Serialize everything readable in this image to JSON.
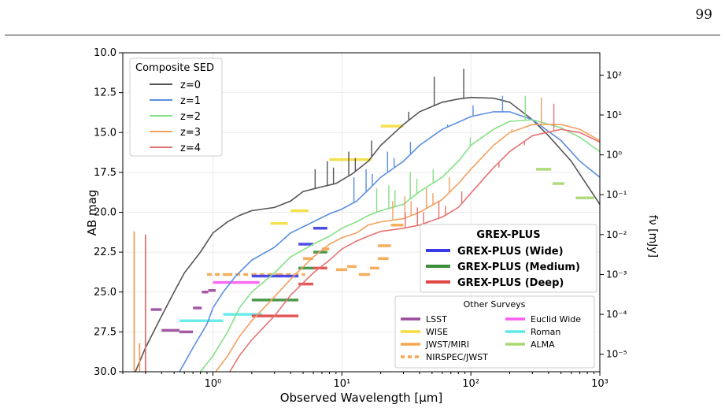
{
  "page": {
    "number": "99"
  },
  "chart_data": {
    "type": "line",
    "xlabel": "Observed Wavelength [μm]",
    "ylabel": "AB mag",
    "y2label": "fν [mJy]",
    "xscale": "log",
    "xlim": [
      0.2,
      1000
    ],
    "ylim": [
      30.0,
      10.0
    ],
    "grid": true,
    "x_ticks": [
      {
        "v": 1,
        "label": "10⁰"
      },
      {
        "v": 10,
        "label": "10¹"
      },
      {
        "v": 100,
        "label": "10²"
      },
      {
        "v": 1000,
        "label": "10³"
      }
    ],
    "y_ticks": [
      "10.0",
      "12.5",
      "15.0",
      "17.5",
      "20.0",
      "22.5",
      "25.0",
      "27.5",
      "30.0"
    ],
    "y2_ticks": [
      {
        "v": 100,
        "label": "10²"
      },
      {
        "v": 10,
        "label": "10¹"
      },
      {
        "v": 1,
        "label": "10⁰"
      },
      {
        "v": 0.1,
        "label": "10⁻¹"
      },
      {
        "v": 0.01,
        "label": "10⁻²"
      },
      {
        "v": 0.001,
        "label": "10⁻³"
      },
      {
        "v": 0.0001,
        "label": "10⁻⁴"
      },
      {
        "v": 1e-05,
        "label": "10⁻⁵"
      }
    ],
    "sed_legend": {
      "title": "Composite SED",
      "placement": "top-left",
      "entries": [
        {
          "label": "z=0",
          "color": "#555555"
        },
        {
          "label": "z=1",
          "color": "#5b8ee0"
        },
        {
          "label": "z=2",
          "color": "#86e086"
        },
        {
          "label": "z=3",
          "color": "#f2a060"
        },
        {
          "label": "z=4",
          "color": "#e57373"
        }
      ]
    },
    "sed_series": [
      {
        "name": "z=0",
        "color": "#555555",
        "points": [
          [
            0.25,
            30
          ],
          [
            0.3,
            28.5
          ],
          [
            0.4,
            26.5
          ],
          [
            0.5,
            25
          ],
          [
            0.6,
            23.8
          ],
          [
            0.8,
            22.5
          ],
          [
            1.0,
            21.3
          ],
          [
            1.3,
            20.6
          ],
          [
            1.6,
            20.2
          ],
          [
            2.0,
            19.9
          ],
          [
            3.0,
            19.7
          ],
          [
            4.0,
            19.3
          ],
          [
            5.0,
            18.7
          ],
          [
            7.0,
            18.4
          ],
          [
            9.0,
            18.2
          ],
          [
            12,
            17.6
          ],
          [
            16,
            16.8
          ],
          [
            20,
            15.8
          ],
          [
            30,
            14.5
          ],
          [
            40,
            13.7
          ],
          [
            60,
            13.1
          ],
          [
            80,
            12.9
          ],
          [
            100,
            12.8
          ],
          [
            150,
            12.85
          ],
          [
            200,
            13.1
          ],
          [
            300,
            14.2
          ],
          [
            400,
            15.2
          ],
          [
            600,
            16.8
          ],
          [
            1000,
            19.5
          ]
        ],
        "spikes": [
          [
            6.2,
            17.3
          ],
          [
            7.7,
            16.8
          ],
          [
            8.6,
            17.2
          ],
          [
            11.3,
            16.2
          ],
          [
            12.7,
            16.6
          ],
          [
            17,
            15.5
          ],
          [
            33,
            13.7
          ],
          [
            52,
            11.5
          ],
          [
            88,
            11.0
          ]
        ]
      },
      {
        "name": "z=1",
        "color": "#5b8ee0",
        "points": [
          [
            0.55,
            30
          ],
          [
            0.7,
            28.5
          ],
          [
            0.9,
            27
          ],
          [
            1.0,
            26
          ],
          [
            1.2,
            25
          ],
          [
            1.5,
            24
          ],
          [
            2.0,
            23
          ],
          [
            3.0,
            22.2
          ],
          [
            4.0,
            21.3
          ],
          [
            6.0,
            20.6
          ],
          [
            8.0,
            20.1
          ],
          [
            10,
            19.8
          ],
          [
            13,
            19.3
          ],
          [
            16,
            18.6
          ],
          [
            20,
            17.8
          ],
          [
            30,
            16.8
          ],
          [
            40,
            15.8
          ],
          [
            60,
            14.8
          ],
          [
            100,
            14.0
          ],
          [
            150,
            13.7
          ],
          [
            200,
            13.7
          ],
          [
            300,
            14.2
          ],
          [
            500,
            15.5
          ],
          [
            700,
            16.8
          ],
          [
            1000,
            17.8
          ]
        ],
        "spikes": [
          [
            12.4,
            17.8
          ],
          [
            15.4,
            17.3
          ],
          [
            17.2,
            17.6
          ],
          [
            22.6,
            16.2
          ],
          [
            25.4,
            16.6
          ],
          [
            34,
            15.6
          ],
          [
            66,
            14.5
          ],
          [
            104,
            13.3
          ],
          [
            176,
            12.7
          ]
        ]
      },
      {
        "name": "z=2",
        "color": "#86e086",
        "points": [
          [
            0.8,
            30
          ],
          [
            1.0,
            29
          ],
          [
            1.3,
            27.5
          ],
          [
            1.6,
            26
          ],
          [
            2.0,
            25
          ],
          [
            3.0,
            23.8
          ],
          [
            4.0,
            22.8
          ],
          [
            6.0,
            22.0
          ],
          [
            8.0,
            21.5
          ],
          [
            10,
            21.0
          ],
          [
            13,
            20.6
          ],
          [
            16,
            20.2
          ],
          [
            20,
            19.9
          ],
          [
            30,
            19.5
          ],
          [
            40,
            18.7
          ],
          [
            60,
            17.8
          ],
          [
            80,
            16.8
          ],
          [
            100,
            15.8
          ],
          [
            150,
            14.8
          ],
          [
            200,
            14.3
          ],
          [
            300,
            14.2
          ],
          [
            500,
            14.7
          ],
          [
            700,
            15.3
          ],
          [
            1000,
            16.2
          ]
        ],
        "spikes": [
          [
            18.6,
            18.5
          ],
          [
            23.1,
            18.3
          ],
          [
            25.8,
            18.6
          ],
          [
            33.9,
            17.5
          ],
          [
            38.1,
            17.9
          ],
          [
            51,
            17.3
          ],
          [
            99,
            15.3
          ],
          [
            156,
            14.7
          ],
          [
            264,
            12.7
          ]
        ]
      },
      {
        "name": "z=3",
        "color": "#f2a060",
        "points": [
          [
            1.05,
            30
          ],
          [
            1.3,
            29
          ],
          [
            1.6,
            27.8
          ],
          [
            2.0,
            26.8
          ],
          [
            3.0,
            25.3
          ],
          [
            4.0,
            24.2
          ],
          [
            6.0,
            22.8
          ],
          [
            8.0,
            22.0
          ],
          [
            10,
            21.6
          ],
          [
            13,
            21.3
          ],
          [
            16,
            20.8
          ],
          [
            20,
            20.6
          ],
          [
            30,
            20.4
          ],
          [
            40,
            20.0
          ],
          [
            60,
            19.2
          ],
          [
            80,
            18.2
          ],
          [
            100,
            17.3
          ],
          [
            150,
            15.8
          ],
          [
            200,
            15.0
          ],
          [
            300,
            14.5
          ],
          [
            500,
            14.5
          ],
          [
            700,
            14.8
          ],
          [
            1000,
            15.5
          ]
        ],
        "spikes": [
          [
            24.8,
            19.3
          ],
          [
            30.8,
            19.0
          ],
          [
            34.4,
            19.3
          ],
          [
            45.2,
            18.5
          ],
          [
            50.8,
            18.8
          ],
          [
            68,
            17.8
          ],
          [
            132,
            16.3
          ],
          [
            208,
            14.8
          ],
          [
            352,
            12.8
          ]
        ]
      },
      {
        "name": "z=4",
        "color": "#e57373",
        "points": [
          [
            1.35,
            30
          ],
          [
            1.6,
            29
          ],
          [
            2.0,
            28
          ],
          [
            3.0,
            26.5
          ],
          [
            4.0,
            25.2
          ],
          [
            6.0,
            23.8
          ],
          [
            8.0,
            23.0
          ],
          [
            10,
            22.3
          ],
          [
            13,
            21.8
          ],
          [
            16,
            21.5
          ],
          [
            20,
            21.2
          ],
          [
            30,
            21.0
          ],
          [
            40,
            20.8
          ],
          [
            60,
            20.3
          ],
          [
            80,
            19.7
          ],
          [
            100,
            18.8
          ],
          [
            150,
            17.2
          ],
          [
            200,
            16.2
          ],
          [
            300,
            15.2
          ],
          [
            500,
            14.8
          ],
          [
            700,
            15.0
          ],
          [
            1000,
            15.6
          ]
        ],
        "spikes": [
          [
            31,
            20.0
          ],
          [
            38.5,
            19.7
          ],
          [
            43,
            20.0
          ],
          [
            56.5,
            19.3
          ],
          [
            63.5,
            19.6
          ],
          [
            85,
            18.7
          ],
          [
            165,
            17.2
          ],
          [
            260,
            15.8
          ],
          [
            440,
            13.2
          ]
        ]
      }
    ],
    "low_z_spikes": [
      {
        "color": "#f2a060",
        "x": 0.245,
        "top": 21.2
      },
      {
        "color": "#e57373",
        "x": 0.3,
        "top": 21.4
      },
      {
        "color": "#f2a060",
        "x": 0.27,
        "top": 28.2
      }
    ],
    "grex_legend": {
      "title": "GREX-PLUS",
      "placement": "right",
      "entries": [
        {
          "label": "GREX-PLUS (Wide)",
          "color": "#3a3ae8"
        },
        {
          "label": "GREX-PLUS (Medium)",
          "color": "#3a8f3a"
        },
        {
          "label": "GREX-PLUS (Deep)",
          "color": "#e04848"
        }
      ]
    },
    "surveys_legend": {
      "title": "Other Surveys",
      "placement": "bottom-right",
      "entries": [
        {
          "label": "LSST",
          "color": "#9b4a9b",
          "style": "solid"
        },
        {
          "label": "Euclid Wide",
          "color": "#ff5cf2",
          "style": "solid"
        },
        {
          "label": "WISE",
          "color": "#f5de3c",
          "style": "solid"
        },
        {
          "label": "Roman",
          "color": "#5ee8e8",
          "style": "solid"
        },
        {
          "label": "JWST/MIRI",
          "color": "#f5a64a",
          "style": "solid"
        },
        {
          "label": "ALMA",
          "color": "#a8d870",
          "style": "solid"
        },
        {
          "label": "NIRSPEC/JWST",
          "color": "#f5a64a",
          "style": "dashed"
        }
      ]
    },
    "depth_bars": [
      {
        "survey": "LSST",
        "color": "#9b4a9b",
        "x1": 0.33,
        "x2": 0.4,
        "y": 26.1
      },
      {
        "survey": "LSST",
        "color": "#9b4a9b",
        "x1": 0.4,
        "x2": 0.55,
        "y": 27.4
      },
      {
        "survey": "LSST",
        "color": "#9b4a9b",
        "x1": 0.55,
        "x2": 0.7,
        "y": 27.5
      },
      {
        "survey": "LSST",
        "color": "#9b4a9b",
        "x1": 0.7,
        "x2": 0.82,
        "y": 26.0
      },
      {
        "survey": "LSST",
        "color": "#9b4a9b",
        "x1": 0.82,
        "x2": 0.92,
        "y": 25.0
      },
      {
        "survey": "LSST",
        "color": "#9b4a9b",
        "x1": 0.92,
        "x2": 1.05,
        "y": 24.9
      },
      {
        "survey": "Euclid Wide",
        "color": "#ff5cf2",
        "x1": 1.0,
        "x2": 2.3,
        "y": 24.4
      },
      {
        "survey": "Roman",
        "color": "#5ee8e8",
        "x1": 0.55,
        "x2": 1.2,
        "y": 26.8
      },
      {
        "survey": "Roman",
        "color": "#5ee8e8",
        "x1": 1.2,
        "x2": 2.4,
        "y": 26.4
      },
      {
        "survey": "WISE",
        "color": "#f5de3c",
        "x1": 2.8,
        "x2": 3.8,
        "y": 20.7
      },
      {
        "survey": "WISE",
        "color": "#f5de3c",
        "x1": 4.0,
        "x2": 5.5,
        "y": 19.9
      },
      {
        "survey": "WISE",
        "color": "#f5de3c",
        "x1": 8.0,
        "x2": 17,
        "y": 16.7
      },
      {
        "survey": "WISE",
        "color": "#f5de3c",
        "x1": 20,
        "x2": 30,
        "y": 14.6
      },
      {
        "survey": "NIRSPEC/JWST",
        "color": "#f5a64a",
        "x1": 0.9,
        "x2": 1.3,
        "y": 23.9,
        "dashed": true
      },
      {
        "survey": "NIRSPEC/JWST",
        "color": "#f5a64a",
        "x1": 1.3,
        "x2": 2.0,
        "y": 23.9,
        "dashed": true
      },
      {
        "survey": "NIRSPEC/JWST",
        "color": "#f5a64a",
        "x1": 2.0,
        "x2": 3.2,
        "y": 23.9,
        "dashed": true
      },
      {
        "survey": "NIRSPEC/JWST",
        "color": "#f5a64a",
        "x1": 3.2,
        "x2": 5.2,
        "y": 23.9,
        "dashed": true
      },
      {
        "survey": "JWST/MIRI",
        "color": "#f5a64a",
        "x1": 5.0,
        "x2": 6.0,
        "y": 22.9
      },
      {
        "survey": "JWST/MIRI",
        "color": "#f5a64a",
        "x1": 7.0,
        "x2": 8.0,
        "y": 22.3
      },
      {
        "survey": "JWST/MIRI",
        "color": "#f5a64a",
        "x1": 9.0,
        "x2": 11,
        "y": 23.6
      },
      {
        "survey": "JWST/MIRI",
        "color": "#f5a64a",
        "x1": 11,
        "x2": 13,
        "y": 23.4
      },
      {
        "survey": "JWST/MIRI",
        "color": "#f5a64a",
        "x1": 13.5,
        "x2": 16.5,
        "y": 23.9
      },
      {
        "survey": "JWST/MIRI",
        "color": "#f5a64a",
        "x1": 16.5,
        "x2": 19.5,
        "y": 23.5
      },
      {
        "survey": "JWST/MIRI",
        "color": "#f5a64a",
        "x1": 19,
        "x2": 23,
        "y": 22.9
      },
      {
        "survey": "JWST/MIRI",
        "color": "#f5a64a",
        "x1": 19,
        "x2": 24,
        "y": 22.1
      },
      {
        "survey": "JWST/MIRI",
        "color": "#f5a64a",
        "x1": 24,
        "x2": 30,
        "y": 20.8
      },
      {
        "survey": "GREX-PLUS (Wide)",
        "color": "#3a3ae8",
        "x1": 2.0,
        "x2": 4.6,
        "y": 24.0
      },
      {
        "survey": "GREX-PLUS (Wide)",
        "color": "#3a3ae8",
        "x1": 4.6,
        "x2": 6.0,
        "y": 22.0
      },
      {
        "survey": "GREX-PLUS (Wide)",
        "color": "#3a3ae8",
        "x1": 6.0,
        "x2": 7.7,
        "y": 21.0
      },
      {
        "survey": "GREX-PLUS (Medium)",
        "color": "#3a8f3a",
        "x1": 2.0,
        "x2": 4.6,
        "y": 25.5
      },
      {
        "survey": "GREX-PLUS (Medium)",
        "color": "#3a8f3a",
        "x1": 4.6,
        "x2": 6.0,
        "y": 23.5
      },
      {
        "survey": "GREX-PLUS (Medium)",
        "color": "#3a8f3a",
        "x1": 6.0,
        "x2": 7.7,
        "y": 22.5
      },
      {
        "survey": "GREX-PLUS (Deep)",
        "color": "#e04848",
        "x1": 2.0,
        "x2": 4.6,
        "y": 26.5
      },
      {
        "survey": "GREX-PLUS (Deep)",
        "color": "#e04848",
        "x1": 4.6,
        "x2": 6.0,
        "y": 24.5
      },
      {
        "survey": "GREX-PLUS (Deep)",
        "color": "#e04848",
        "x1": 6.0,
        "x2": 7.7,
        "y": 23.5
      },
      {
        "survey": "ALMA",
        "color": "#a8d870",
        "x1": 320,
        "x2": 420,
        "y": 17.3
      },
      {
        "survey": "ALMA",
        "color": "#a8d870",
        "x1": 430,
        "x2": 530,
        "y": 18.2
      },
      {
        "survey": "ALMA",
        "color": "#a8d870",
        "x1": 650,
        "x2": 900,
        "y": 19.1
      }
    ]
  }
}
